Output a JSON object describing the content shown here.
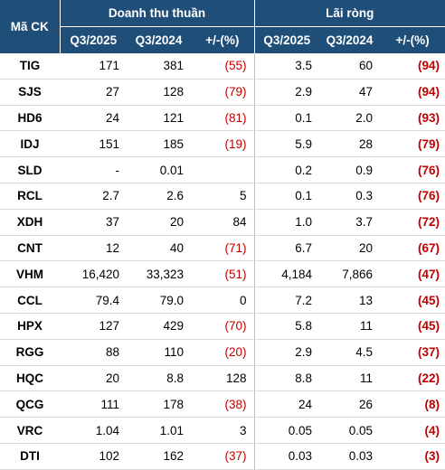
{
  "header": {
    "code_label": "Mã CK",
    "group_revenue": "Doanh thu thuần",
    "group_profit": "Lãi ròng",
    "col_q3_2025": "Q3/2025",
    "col_q3_2024": "Q3/2024",
    "col_change": "+/-(%)"
  },
  "colors": {
    "header_bg": "#1f4e79",
    "negative": "#c00000"
  },
  "rows": [
    {
      "code": "TIG",
      "rev_2025": "171",
      "rev_2024": "381",
      "rev_chg": "(55)",
      "rev_neg": true,
      "np_2025": "3.5",
      "np_2024": "60",
      "np_chg": "(94)"
    },
    {
      "code": "SJS",
      "rev_2025": "27",
      "rev_2024": "128",
      "rev_chg": "(79)",
      "rev_neg": true,
      "np_2025": "2.9",
      "np_2024": "47",
      "np_chg": "(94)"
    },
    {
      "code": "HD6",
      "rev_2025": "24",
      "rev_2024": "121",
      "rev_chg": "(81)",
      "rev_neg": true,
      "np_2025": "0.1",
      "np_2024": "2.0",
      "np_chg": "(93)"
    },
    {
      "code": "IDJ",
      "rev_2025": "151",
      "rev_2024": "185",
      "rev_chg": "(19)",
      "rev_neg": true,
      "np_2025": "5.9",
      "np_2024": "28",
      "np_chg": "(79)"
    },
    {
      "code": "SLD",
      "rev_2025": "-",
      "rev_2024": "0.01",
      "rev_chg": "",
      "rev_neg": false,
      "np_2025": "0.2",
      "np_2024": "0.9",
      "np_chg": "(76)"
    },
    {
      "code": "RCL",
      "rev_2025": "2.7",
      "rev_2024": "2.6",
      "rev_chg": "5",
      "rev_neg": false,
      "np_2025": "0.1",
      "np_2024": "0.3",
      "np_chg": "(76)"
    },
    {
      "code": "XDH",
      "rev_2025": "37",
      "rev_2024": "20",
      "rev_chg": "84",
      "rev_neg": false,
      "np_2025": "1.0",
      "np_2024": "3.7",
      "np_chg": "(72)"
    },
    {
      "code": "CNT",
      "rev_2025": "12",
      "rev_2024": "40",
      "rev_chg": "(71)",
      "rev_neg": true,
      "np_2025": "6.7",
      "np_2024": "20",
      "np_chg": "(67)"
    },
    {
      "code": "VHM",
      "rev_2025": "16,420",
      "rev_2024": "33,323",
      "rev_chg": "(51)",
      "rev_neg": true,
      "np_2025": "4,184",
      "np_2024": "7,866",
      "np_chg": "(47)"
    },
    {
      "code": "CCL",
      "rev_2025": "79.4",
      "rev_2024": "79.0",
      "rev_chg": "0",
      "rev_neg": false,
      "np_2025": "7.2",
      "np_2024": "13",
      "np_chg": "(45)"
    },
    {
      "code": "HPX",
      "rev_2025": "127",
      "rev_2024": "429",
      "rev_chg": "(70)",
      "rev_neg": true,
      "np_2025": "5.8",
      "np_2024": "11",
      "np_chg": "(45)"
    },
    {
      "code": "RGG",
      "rev_2025": "88",
      "rev_2024": "110",
      "rev_chg": "(20)",
      "rev_neg": true,
      "np_2025": "2.9",
      "np_2024": "4.5",
      "np_chg": "(37)"
    },
    {
      "code": "HQC",
      "rev_2025": "20",
      "rev_2024": "8.8",
      "rev_chg": "128",
      "rev_neg": false,
      "np_2025": "8.8",
      "np_2024": "11",
      "np_chg": "(22)"
    },
    {
      "code": "QCG",
      "rev_2025": "111",
      "rev_2024": "178",
      "rev_chg": "(38)",
      "rev_neg": true,
      "np_2025": "24",
      "np_2024": "26",
      "np_chg": "(8)"
    },
    {
      "code": "VRC",
      "rev_2025": "1.04",
      "rev_2024": "1.01",
      "rev_chg": "3",
      "rev_neg": false,
      "np_2025": "0.05",
      "np_2024": "0.05",
      "np_chg": "(4)"
    },
    {
      "code": "DTI",
      "rev_2025": "102",
      "rev_2024": "162",
      "rev_chg": "(37)",
      "rev_neg": true,
      "np_2025": "0.03",
      "np_2024": "0.03",
      "np_chg": "(3)"
    }
  ]
}
